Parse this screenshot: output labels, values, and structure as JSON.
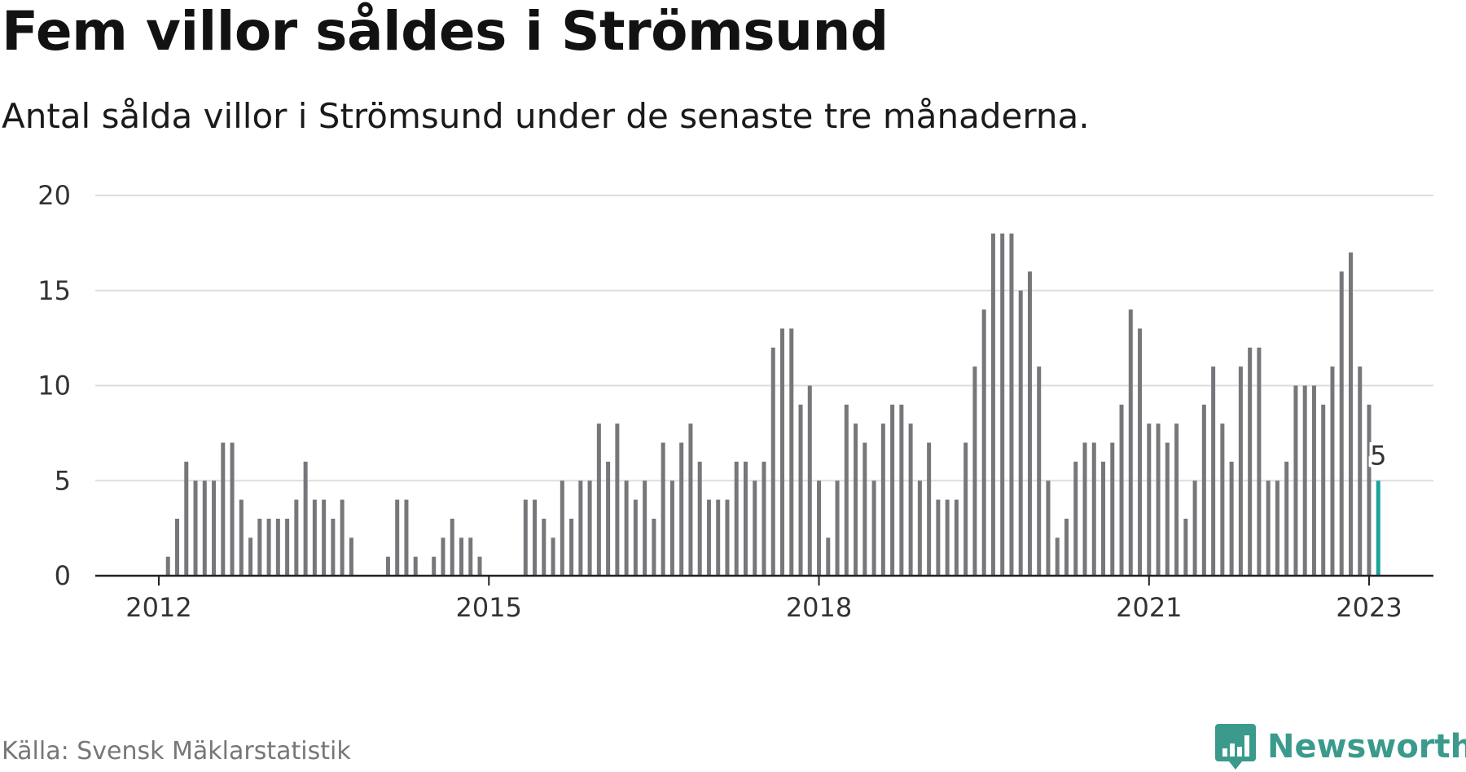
{
  "title": "Fem villor såldes i Strömsund",
  "subtitle": "Antal sålda villor i Strömsund under de senaste tre månaderna.",
  "source": "Källa: Svensk Mäklarstatistik",
  "brand": {
    "name": "Newsworthy",
    "color": "#3a9a8c",
    "icon": "bar-chart-speech-bubble-icon"
  },
  "colors": {
    "bar": "#77777b",
    "highlight": "#1ba39c",
    "grid": "#dddddd",
    "axis": "#222222"
  },
  "chart_data": {
    "type": "bar",
    "title": "Fem villor såldes i Strömsund",
    "xlabel": "",
    "ylabel": "",
    "ylim": [
      0,
      20
    ],
    "yticks": [
      "0",
      "5",
      "10",
      "15",
      "20"
    ],
    "xticks": [
      "2012",
      "2015",
      "2018",
      "2021",
      "2023"
    ],
    "grid": true,
    "start": "2011-11",
    "end": "2023-01",
    "values": [
      0,
      0,
      0,
      1,
      3,
      6,
      5,
      5,
      5,
      7,
      7,
      4,
      2,
      3,
      3,
      3,
      3,
      4,
      6,
      4,
      4,
      3,
      4,
      2,
      0,
      0,
      0,
      1,
      4,
      4,
      1,
      0,
      1,
      2,
      3,
      2,
      2,
      1,
      0,
      0,
      0,
      0,
      4,
      4,
      3,
      2,
      5,
      3,
      5,
      5,
      8,
      6,
      8,
      5,
      4,
      5,
      3,
      7,
      5,
      7,
      8,
      6,
      4,
      4,
      4,
      6,
      6,
      5,
      6,
      12,
      13,
      13,
      9,
      10,
      5,
      2,
      5,
      9,
      8,
      7,
      5,
      8,
      9,
      9,
      8,
      5,
      7,
      4,
      4,
      4,
      7,
      11,
      14,
      18,
      18,
      18,
      15,
      16,
      11,
      5,
      2,
      3,
      6,
      7,
      7,
      6,
      7,
      9,
      14,
      13,
      8,
      8,
      7,
      8,
      3,
      5,
      9,
      11,
      8,
      6,
      11,
      12,
      12,
      5,
      5,
      6,
      10,
      10,
      10,
      9,
      11,
      16,
      17,
      11,
      9,
      5
    ],
    "highlight": {
      "label": "2023-01",
      "value": 5,
      "annotation": "5"
    }
  }
}
